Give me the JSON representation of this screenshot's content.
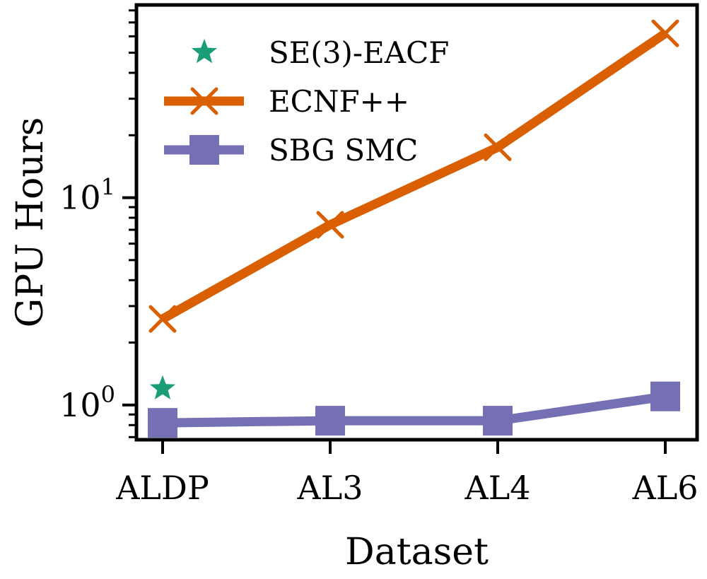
{
  "chart_data": {
    "type": "line",
    "categories": [
      "ALDP",
      "AL3",
      "AL4",
      "AL6"
    ],
    "xlabel": "Dataset",
    "ylabel": "GPU Hours",
    "yscale": "log",
    "ylim": [
      0.68,
      85
    ],
    "yticks": [
      {
        "value": 1,
        "base": "10",
        "exp": "0"
      },
      {
        "value": 10,
        "base": "10",
        "exp": "1"
      }
    ],
    "grid": false,
    "legend_position": "top-left",
    "series": [
      {
        "name": "SE(3)-EACF",
        "marker": "star",
        "style": "markers-only",
        "color": "#1b9e77",
        "values": [
          1.2,
          null,
          null,
          null
        ]
      },
      {
        "name": "ECNF++",
        "marker": "x",
        "style": "line",
        "color": "#d95f02",
        "values": [
          2.6,
          7.4,
          17.5,
          62
        ]
      },
      {
        "name": "SBG SMC",
        "marker": "square",
        "style": "line",
        "color": "#7570b3",
        "values": [
          0.82,
          0.84,
          0.84,
          1.1
        ]
      }
    ]
  }
}
